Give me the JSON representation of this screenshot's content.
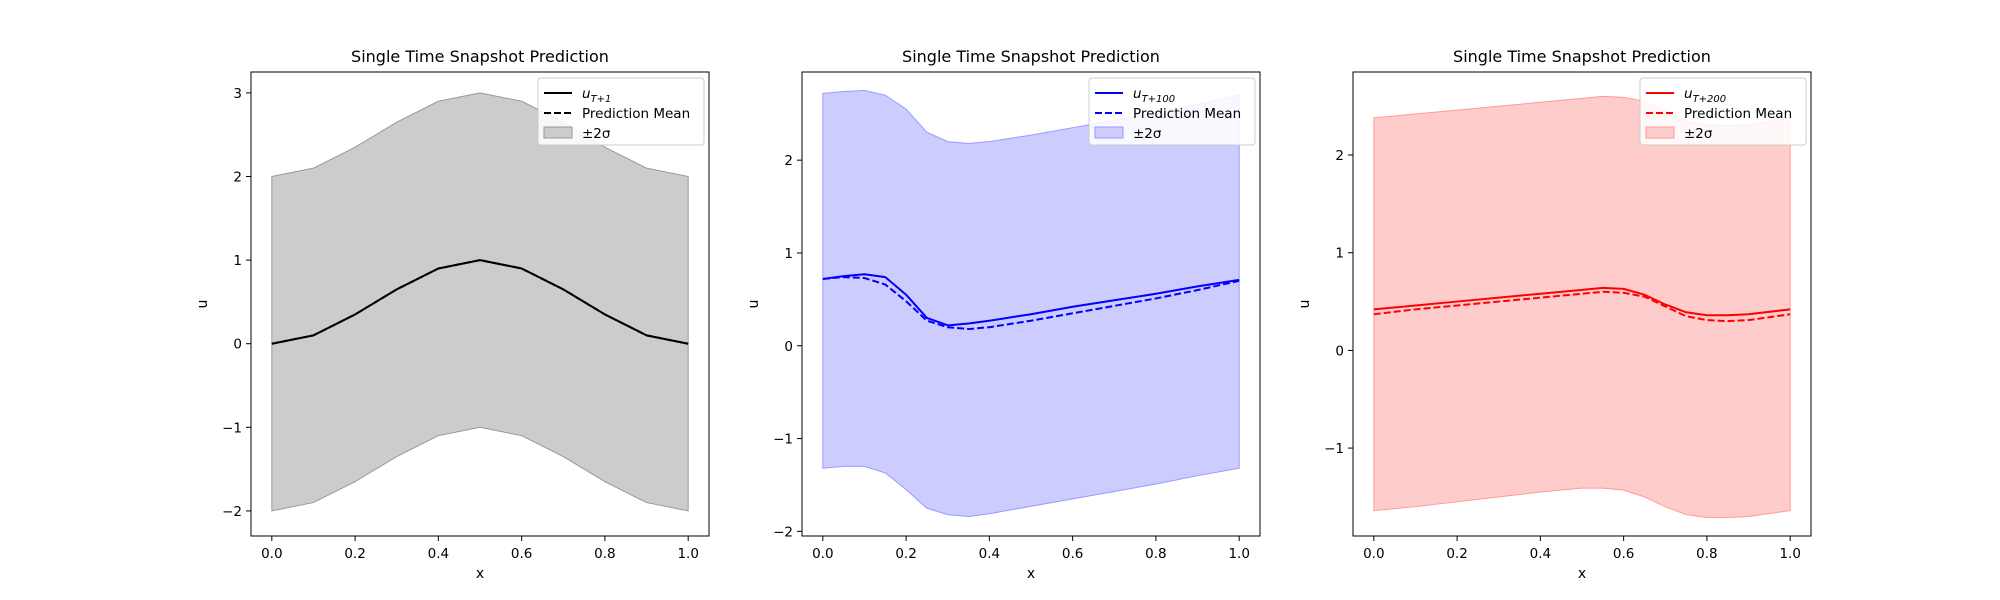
{
  "chart_data": [
    {
      "type": "line",
      "title": "Single Time Snapshot Prediction",
      "xlabel": "x",
      "ylabel": "u",
      "xlim": [
        -0.05,
        1.05
      ],
      "ylim": [
        -2.3,
        3.25
      ],
      "xticks": [
        "0.0",
        "0.2",
        "0.4",
        "0.6",
        "0.8",
        "1.0"
      ],
      "yticks": [
        "−2",
        "−1",
        "0",
        "1",
        "2",
        "3"
      ],
      "xtick_values": [
        0,
        0.2,
        0.4,
        0.6,
        0.8,
        1.0
      ],
      "ytick_values": [
        -2,
        -1,
        0,
        1,
        2,
        3
      ],
      "color": "#000000",
      "band_fill": "#cccccc",
      "band_edge": "#999999",
      "legend_position": "top-right",
      "legend": {
        "truth_base": "u",
        "truth_sub": "T+1",
        "mean": "Prediction Mean",
        "band": "±2σ"
      },
      "x": [
        0,
        0.1,
        0.2,
        0.3,
        0.4,
        0.5,
        0.6,
        0.7,
        0.8,
        0.9,
        1.0
      ],
      "truth": [
        0,
        0.1,
        0.35,
        0.65,
        0.9,
        1.0,
        0.9,
        0.65,
        0.35,
        0.1,
        0
      ],
      "mean": [
        0,
        0.1,
        0.35,
        0.65,
        0.9,
        1.0,
        0.9,
        0.65,
        0.35,
        0.1,
        0
      ],
      "upper": [
        2.0,
        2.1,
        2.35,
        2.65,
        2.9,
        3.0,
        2.9,
        2.65,
        2.35,
        2.1,
        2.0
      ],
      "lower": [
        -2.0,
        -1.9,
        -1.65,
        -1.35,
        -1.1,
        -1.0,
        -1.1,
        -1.35,
        -1.65,
        -1.9,
        -2.0
      ]
    },
    {
      "type": "line",
      "title": "Single Time Snapshot Prediction",
      "xlabel": "x",
      "ylabel": "u",
      "xlim": [
        -0.05,
        1.05
      ],
      "ylim": [
        -2.05,
        2.95
      ],
      "xticks": [
        "0.0",
        "0.2",
        "0.4",
        "0.6",
        "0.8",
        "1.0"
      ],
      "yticks": [
        "−2",
        "−1",
        "0",
        "1",
        "2"
      ],
      "xtick_values": [
        0,
        0.2,
        0.4,
        0.6,
        0.8,
        1.0
      ],
      "ytick_values": [
        -2,
        -1,
        0,
        1,
        2
      ],
      "color": "#0000ff",
      "band_fill": "#ccccff",
      "band_edge": "#9999ff",
      "legend_position": "top-right",
      "legend": {
        "truth_base": "u",
        "truth_sub": "T+100",
        "mean": "Prediction Mean",
        "band": "±2σ"
      },
      "x": [
        0,
        0.05,
        0.1,
        0.15,
        0.2,
        0.25,
        0.3,
        0.35,
        0.4,
        0.5,
        0.6,
        0.7,
        0.8,
        0.9,
        1.0
      ],
      "truth": [
        0.72,
        0.75,
        0.77,
        0.74,
        0.55,
        0.3,
        0.22,
        0.24,
        0.27,
        0.34,
        0.42,
        0.49,
        0.56,
        0.64,
        0.71
      ],
      "mean": [
        0.72,
        0.74,
        0.73,
        0.66,
        0.48,
        0.27,
        0.2,
        0.18,
        0.2,
        0.27,
        0.35,
        0.43,
        0.51,
        0.6,
        0.7
      ],
      "upper": [
        2.72,
        2.74,
        2.75,
        2.7,
        2.55,
        2.3,
        2.2,
        2.18,
        2.2,
        2.27,
        2.35,
        2.43,
        2.51,
        2.6,
        2.7
      ],
      "lower": [
        -1.32,
        -1.3,
        -1.3,
        -1.37,
        -1.55,
        -1.75,
        -1.82,
        -1.84,
        -1.81,
        -1.73,
        -1.65,
        -1.57,
        -1.49,
        -1.4,
        -1.32
      ]
    },
    {
      "type": "line",
      "title": "Single Time Snapshot Prediction",
      "xlabel": "x",
      "ylabel": "u",
      "xlim": [
        -0.05,
        1.05
      ],
      "ylim": [
        -1.9,
        2.85
      ],
      "xticks": [
        "0.0",
        "0.2",
        "0.4",
        "0.6",
        "0.8",
        "1.0"
      ],
      "yticks": [
        "−1",
        "0",
        "1",
        "2"
      ],
      "xtick_values": [
        0,
        0.2,
        0.4,
        0.6,
        0.8,
        1.0
      ],
      "ytick_values": [
        -1,
        0,
        1,
        2
      ],
      "color": "#ff0000",
      "band_fill": "#ffcccc",
      "band_edge": "#ff9999",
      "legend_position": "top-right",
      "legend": {
        "truth_base": "u",
        "truth_sub": "T+200",
        "mean": "Prediction Mean",
        "band": "±2σ"
      },
      "x": [
        0,
        0.1,
        0.2,
        0.3,
        0.4,
        0.5,
        0.55,
        0.6,
        0.65,
        0.7,
        0.75,
        0.8,
        0.85,
        0.9,
        1.0
      ],
      "truth": [
        0.42,
        0.46,
        0.5,
        0.54,
        0.58,
        0.62,
        0.64,
        0.63,
        0.57,
        0.47,
        0.39,
        0.36,
        0.36,
        0.37,
        0.42
      ],
      "mean": [
        0.37,
        0.42,
        0.46,
        0.5,
        0.54,
        0.58,
        0.6,
        0.59,
        0.55,
        0.45,
        0.35,
        0.31,
        0.3,
        0.31,
        0.37
      ],
      "upper": [
        2.38,
        2.42,
        2.46,
        2.5,
        2.54,
        2.58,
        2.6,
        2.59,
        2.55,
        2.45,
        2.35,
        2.31,
        2.3,
        2.31,
        2.38
      ],
      "lower": [
        -1.64,
        -1.6,
        -1.55,
        -1.5,
        -1.45,
        -1.41,
        -1.41,
        -1.43,
        -1.5,
        -1.6,
        -1.68,
        -1.71,
        -1.71,
        -1.7,
        -1.64
      ]
    }
  ]
}
